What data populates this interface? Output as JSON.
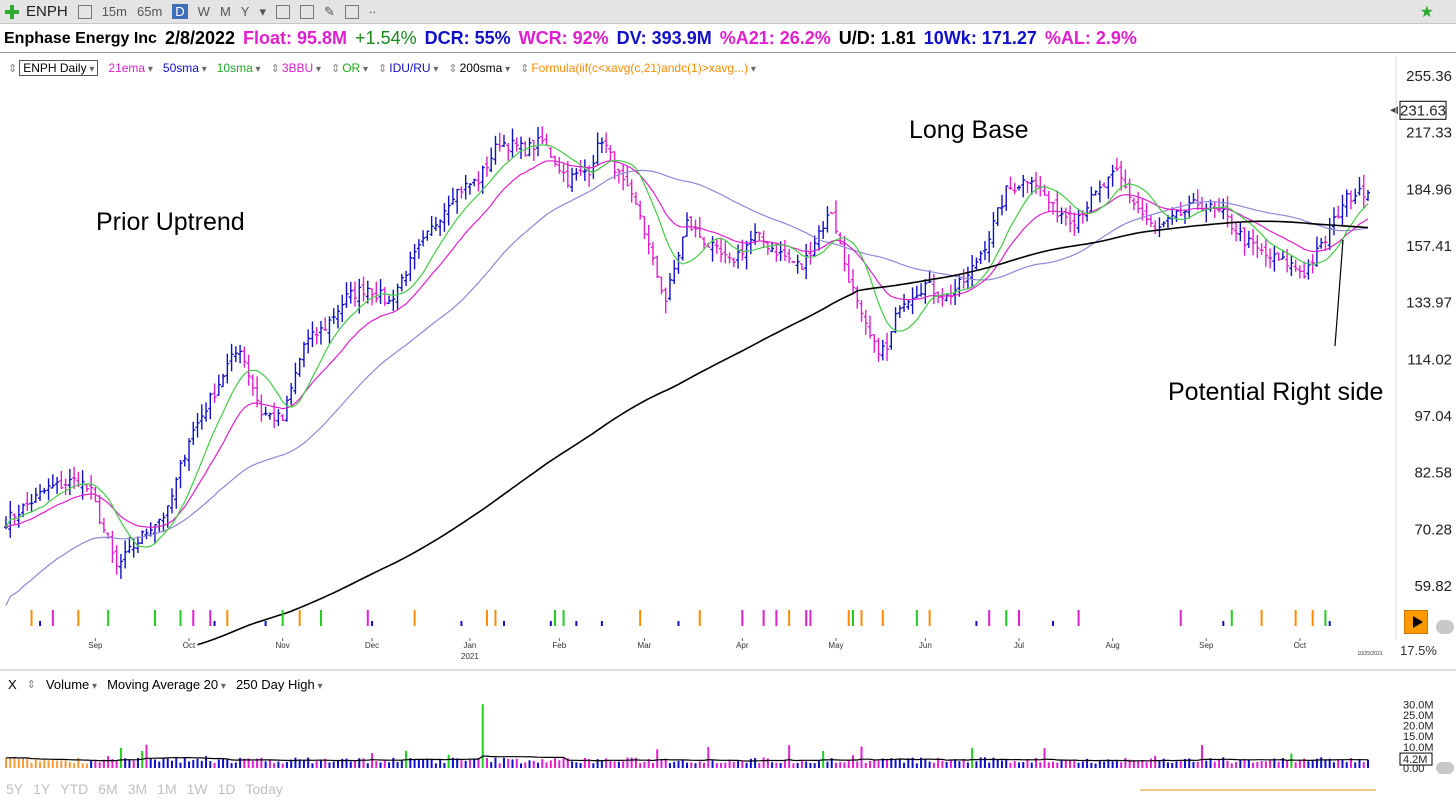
{
  "toolbar": {
    "symbol": "ENPH",
    "intervals": [
      "15m",
      "65m",
      "D",
      "W",
      "M",
      "Y"
    ],
    "active_interval": "D"
  },
  "info": {
    "company": "Enphase Energy Inc",
    "date": "2/8/2022",
    "float": "Float: 95.8M",
    "change": "+1.54%",
    "dcr": "DCR: 55%",
    "wcr": "WCR: 92%",
    "dv": "DV: 393.9M",
    "a21": "%A21: 26.2%",
    "ud": "U/D: 1.81",
    "tenwk": "10Wk: 171.27",
    "al": "%AL: 2.9%"
  },
  "legend": {
    "symbol": "ENPH Daily",
    "items": [
      {
        "label": "21ema",
        "color": "#e020d0"
      },
      {
        "label": "50sma",
        "color": "#1010c8"
      },
      {
        "label": "10sma",
        "color": "#22aa22"
      },
      {
        "label": "3BBU",
        "color": "#e020d0"
      },
      {
        "label": "OR",
        "color": "#22aa22"
      },
      {
        "label": "IDU/RU",
        "color": "#1010c8"
      },
      {
        "label": "200sma",
        "color": "#000000"
      },
      {
        "label": "Formula(iif(c<xavg(c,21)andc(1)>xavg...)",
        "color": "#ff8c00"
      }
    ]
  },
  "annotations": {
    "prior_uptrend": "Prior Uptrend",
    "long_base": "Long Base",
    "right_side": "Potential Right side"
  },
  "volume_panel": {
    "close_label": "X",
    "title": "Volume",
    "ma": "Moving Average 20",
    "high": "250 Day High",
    "current": "4.2M"
  },
  "ranges": [
    "5Y",
    "1Y",
    "YTD",
    "6M",
    "3M",
    "1M",
    "1W",
    "1D",
    "Today"
  ],
  "misc": {
    "percent": "17.5%",
    "date_small": "10/25/2021"
  },
  "chart_data": {
    "type": "ohlc",
    "y_scale": "log",
    "ylim": [
      55,
      270
    ],
    "y_ticks": [
      255.36,
      217.33,
      184.96,
      157.41,
      133.97,
      114.02,
      97.04,
      82.58,
      70.28,
      59.82
    ],
    "last_price": 231.63,
    "x_ticks": [
      "Sep",
      "Oct",
      "Nov",
      "Dec",
      "Jan",
      "Feb",
      "Mar",
      "Apr",
      "May",
      "Jun",
      "Jul",
      "Aug",
      "Sep",
      "Oct"
    ],
    "x_subtick": {
      "under": "Jan",
      "label": "2021"
    },
    "price_anchors": [
      [
        "2020-08-03",
        72
      ],
      [
        "2020-08-17",
        79
      ],
      [
        "2020-08-26",
        81
      ],
      [
        "2020-08-31",
        78
      ],
      [
        "2020-09-08",
        63
      ],
      [
        "2020-09-14",
        67
      ],
      [
        "2020-09-18",
        71
      ],
      [
        "2020-09-24",
        74
      ],
      [
        "2020-10-01",
        91
      ],
      [
        "2020-10-09",
        104
      ],
      [
        "2020-10-14",
        112
      ],
      [
        "2020-10-19",
        118
      ],
      [
        "2020-10-26",
        98
      ],
      [
        "2020-11-02",
        96
      ],
      [
        "2020-11-09",
        119
      ],
      [
        "2020-11-16",
        125
      ],
      [
        "2020-11-23",
        136
      ],
      [
        "2020-11-30",
        140
      ],
      [
        "2020-12-07",
        134
      ],
      [
        "2020-12-14",
        150
      ],
      [
        "2020-12-21",
        165
      ],
      [
        "2020-12-28",
        183
      ],
      [
        "2021-01-05",
        190
      ],
      [
        "2021-01-12",
        212
      ],
      [
        "2021-01-20",
        207
      ],
      [
        "2021-01-26",
        212
      ],
      [
        "2021-02-03",
        190
      ],
      [
        "2021-02-10",
        196
      ],
      [
        "2021-02-15",
        214
      ],
      [
        "2021-02-19",
        192
      ],
      [
        "2021-02-26",
        172
      ],
      [
        "2021-03-03",
        150
      ],
      [
        "2021-03-08",
        135
      ],
      [
        "2021-03-15",
        168
      ],
      [
        "2021-03-22",
        158
      ],
      [
        "2021-03-29",
        150
      ],
      [
        "2021-04-06",
        162
      ],
      [
        "2021-04-14",
        154
      ],
      [
        "2021-04-21",
        148
      ],
      [
        "2021-04-27",
        164
      ],
      [
        "2021-04-30",
        174
      ],
      [
        "2021-05-05",
        150
      ],
      [
        "2021-05-11",
        128
      ],
      [
        "2021-05-14",
        118
      ],
      [
        "2021-05-19",
        117
      ],
      [
        "2021-05-24",
        134
      ],
      [
        "2021-06-01",
        141
      ],
      [
        "2021-06-08",
        136
      ],
      [
        "2021-06-15",
        144
      ],
      [
        "2021-06-22",
        162
      ],
      [
        "2021-06-28",
        184
      ],
      [
        "2021-07-06",
        192
      ],
      [
        "2021-07-13",
        175
      ],
      [
        "2021-07-20",
        170
      ],
      [
        "2021-07-27",
        182
      ],
      [
        "2021-08-03",
        194
      ],
      [
        "2021-08-09",
        178
      ],
      [
        "2021-08-16",
        164
      ],
      [
        "2021-08-23",
        171
      ],
      [
        "2021-08-30",
        178
      ],
      [
        "2021-09-07",
        172
      ],
      [
        "2021-09-14",
        160
      ],
      [
        "2021-09-21",
        153
      ],
      [
        "2021-09-28",
        150
      ],
      [
        "2021-10-04",
        146
      ],
      [
        "2021-10-11",
        160
      ],
      [
        "2021-10-15",
        178
      ],
      [
        "2021-10-21",
        186
      ],
      [
        "2021-10-25",
        182
      ]
    ],
    "volume_ticks": [
      "30.0M",
      "25.0M",
      "20.0M",
      "15.0M",
      "10.0M",
      "4.2M",
      "0.00"
    ],
    "volume_max": 32,
    "volume_avg": 4.2
  }
}
